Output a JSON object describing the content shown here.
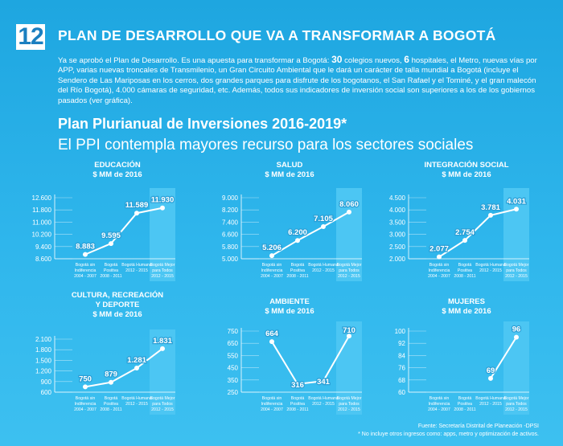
{
  "header": {
    "badge": "12",
    "title": "PLAN DE DESARROLLO QUE VA A TRANSFORMAR A BOGOTÁ",
    "intro_pre": "Ya se aprobó el Plan de Desarrollo. Es una apuesta para transformar a Bogotá: ",
    "intro_num1": "30",
    "intro_mid1": " colegios nuevos, ",
    "intro_num2": "6",
    "intro_rest": " hospitales, el Metro, nuevas vías por APP, varias nuevas troncales de Transmilenio, un Gran Circuito Ambiental que le dará un carácter de talla mundial a Bogotá (incluye el Sendero de Las Mariposas en los cerros, dos grandes parques para disfrute de los bogotanos, el San Rafael y el Tominé, y el gran malecón del Río Bogotá), 4.000 cámaras de seguridad, etc. Además, todos sus indicadores de inversión social son superiores a los de los gobiernos pasados (ver gráfica).",
    "subtitle1": "Plan Plurianual de Inversiones 2016-2019*",
    "subtitle2": "El PPI contempla mayores recurso para los sectores sociales"
  },
  "footer": {
    "source": "Fuente: Secretaría Distrital de Planeación -DPSI",
    "note": "* No incluye otros ingresos como: apps, metro y optimización de activos."
  },
  "colors": {
    "background": "#2fb6ec",
    "highlight_panel": "#4cc6f3",
    "axis_line": "#ffffff"
  },
  "chart_data": [
    {
      "type": "line",
      "title": "EDUCACIÓN\n$ MM de 2016",
      "categories": [
        "Bogotá sin Indiferencia 2004 - 2007",
        "Bogotá Positiva 2008 - 2011",
        "Bogotá Humana 2012 - 2015",
        "Bogotá Mejor para Todos 2012 - 2015"
      ],
      "values": [
        8883,
        9595,
        11589,
        11930
      ],
      "value_labels": [
        "8.883",
        "9.595",
        "11.589",
        "11.930"
      ],
      "yticks": [
        "8.600",
        "9.400",
        "10.200",
        "11.000",
        "11.800",
        "12.600"
      ],
      "ytick_values": [
        8600,
        9400,
        10200,
        11000,
        11800,
        12600
      ],
      "ylim": [
        8600,
        12600
      ],
      "highlight_last": true
    },
    {
      "type": "line",
      "title": "SALUD\n$ MM de 2016",
      "categories": [
        "Bogotá sin Indiferencia 2004 - 2007",
        "Bogotá Positiva 2008 - 2011",
        "Bogotá Humana 2012 - 2015",
        "Bogotá Mejor para Todos 2012 - 2015"
      ],
      "values": [
        5206,
        6200,
        7105,
        8060
      ],
      "value_labels": [
        "5.206",
        "6.200",
        "7.105",
        "8.060"
      ],
      "yticks": [
        "5.000",
        "5.800",
        "6.600",
        "7.400",
        "8.200",
        "9.000"
      ],
      "ytick_values": [
        5000,
        5800,
        6600,
        7400,
        8200,
        9000
      ],
      "ylim": [
        5000,
        9000
      ],
      "highlight_last": true
    },
    {
      "type": "line",
      "title": "INTEGRACIÓN SOCIAL\n$ MM de 2016",
      "categories": [
        "Bogotá sin Indiferencia 2004 - 2007",
        "Bogotá Positiva 2008 - 2011",
        "Bogotá Humana 2012 - 2015",
        "Bogotá Mejor para Todos 2012 - 2015"
      ],
      "values": [
        2077,
        2754,
        3781,
        4031
      ],
      "value_labels": [
        "2.077",
        "2.754",
        "3.781",
        "4.031"
      ],
      "yticks": [
        "2.000",
        "2.500",
        "3.000",
        "3.500",
        "4.000",
        "4.500"
      ],
      "ytick_values": [
        2000,
        2500,
        3000,
        3500,
        4000,
        4500
      ],
      "ylim": [
        2000,
        4500
      ],
      "highlight_last": true
    },
    {
      "type": "line",
      "title": "CULTURA, RECREACIÓN\nY DEPORTE\n$ MM de 2016",
      "categories": [
        "Bogotá sin Indiferencia 2004 - 2007",
        "Bogotá Positiva 2008 - 2011",
        "Bogotá Humana 2012 - 2015",
        "Bogotá Mejor para Todos 2012 - 2015"
      ],
      "values": [
        750,
        879,
        1281,
        1831
      ],
      "value_labels": [
        "750",
        "879",
        "1.281",
        "1.831"
      ],
      "yticks": [
        "600",
        "900",
        "1.200",
        "1.500",
        "1.800",
        "2.100"
      ],
      "ytick_values": [
        600,
        900,
        1200,
        1500,
        1800,
        2100
      ],
      "ylim": [
        600,
        2100
      ],
      "highlight_last": true
    },
    {
      "type": "line",
      "title": "AMBIENTE\n$ MM de 2016",
      "categories": [
        "Bogotá sin Indiferencia 2004 - 2007",
        "Bogotá Positiva 2008 - 2011",
        "Bogotá Humana 2012 - 2015",
        "Bogotá Mejor para Todos 2012 - 2015"
      ],
      "values": [
        664,
        316,
        341,
        710
      ],
      "value_labels": [
        "664",
        "316",
        "341",
        "710"
      ],
      "yticks": [
        "250",
        "350",
        "450",
        "550",
        "650",
        "750"
      ],
      "ytick_values": [
        250,
        350,
        450,
        550,
        650,
        750
      ],
      "ylim": [
        250,
        750
      ],
      "highlight_last": true
    },
    {
      "type": "line",
      "title": "MUJERES\n$ MM de 2016",
      "categories": [
        "Bogotá sin Indiferencia 2004 - 2007",
        "Bogotá Positiva 2008 - 2011",
        "Bogotá Humana 2012 - 2015",
        "Bogotá Mejor para Todos 2012 - 2015"
      ],
      "values": [
        null,
        null,
        69,
        96
      ],
      "value_labels": [
        "",
        "",
        "69",
        "96"
      ],
      "yticks": [
        "60",
        "68",
        "76",
        "84",
        "92",
        "100"
      ],
      "ytick_values": [
        60,
        68,
        76,
        84,
        92,
        100
      ],
      "ylim": [
        60,
        100
      ],
      "highlight_last": true
    }
  ]
}
